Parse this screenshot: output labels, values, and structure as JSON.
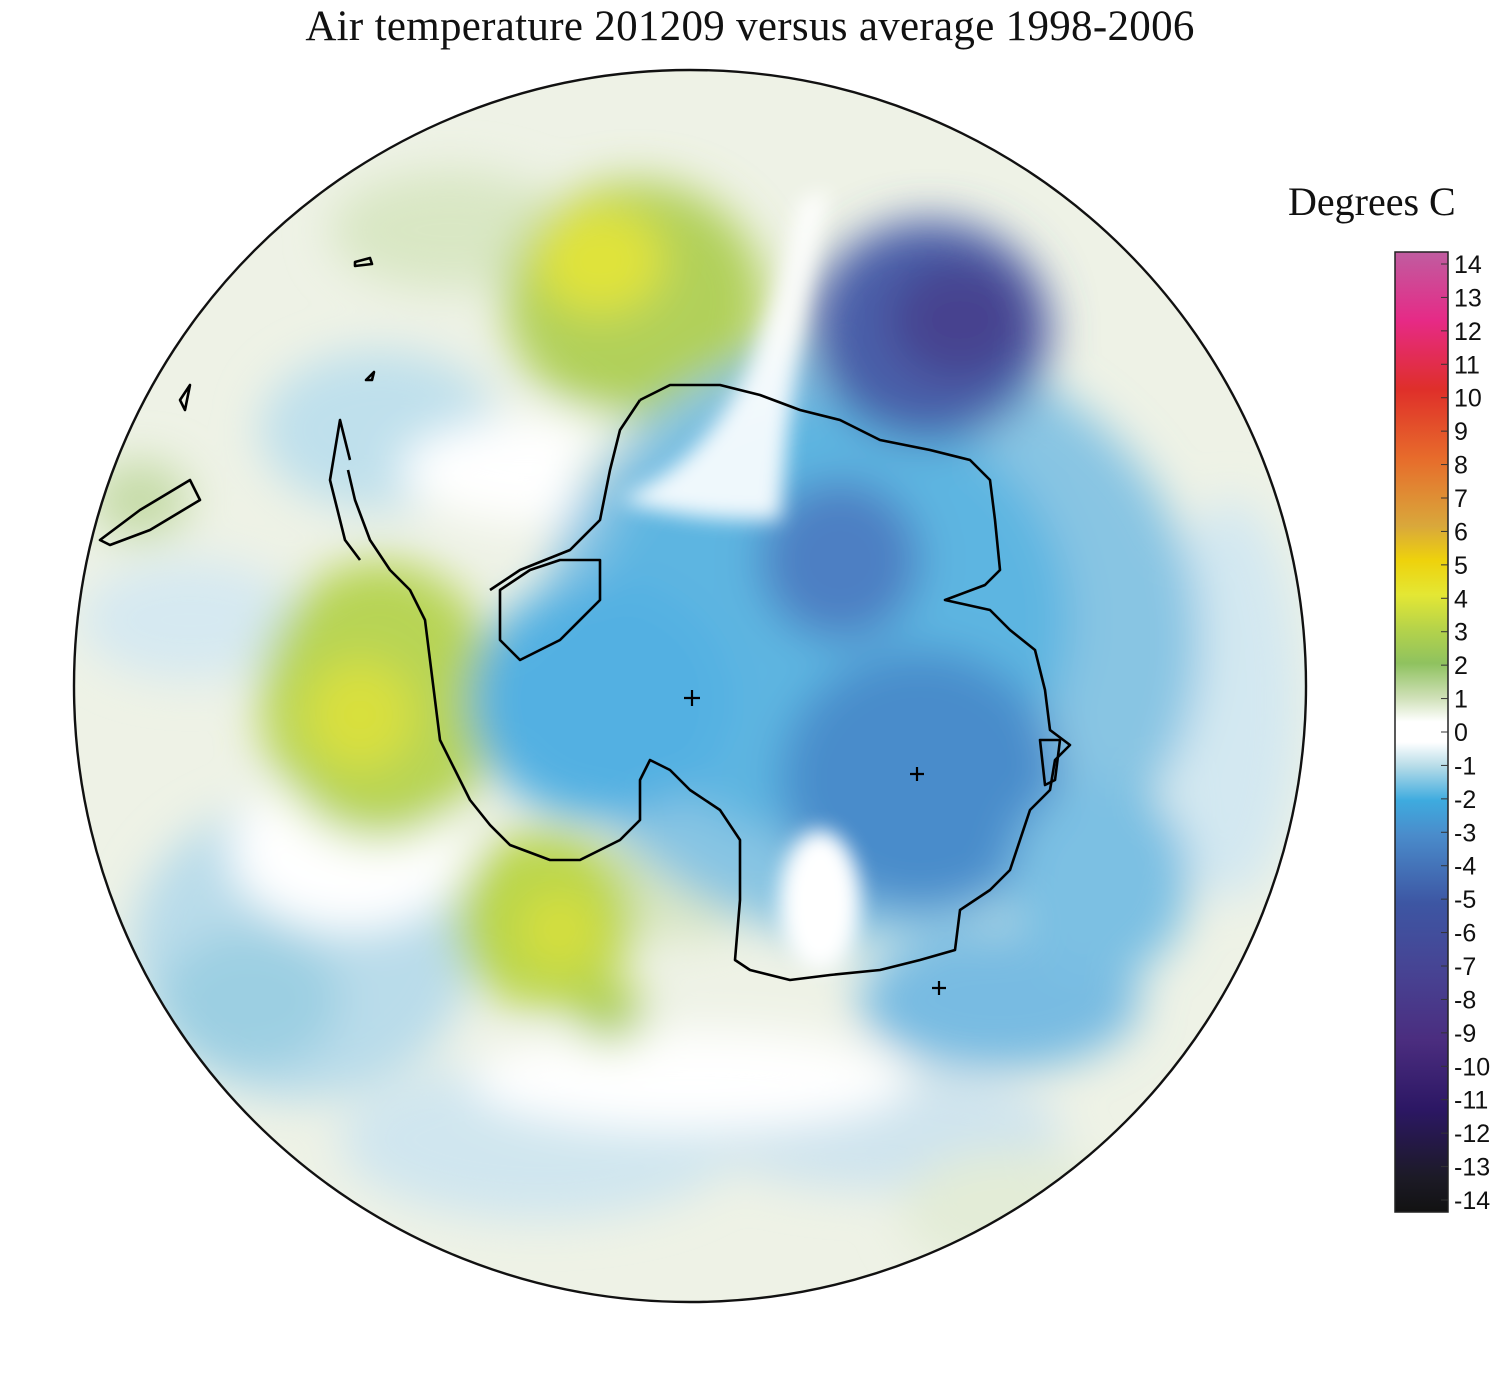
{
  "title": "Air temperature 201209 versus average 1998-2006",
  "legend": {
    "title": "Degrees C",
    "min": -14,
    "max": 14,
    "ticks": [
      14,
      13,
      12,
      11,
      10,
      9,
      8,
      7,
      6,
      5,
      4,
      3,
      2,
      1,
      0,
      -1,
      -2,
      -3,
      -4,
      -5,
      -6,
      -7,
      -8,
      -9,
      -10,
      -11,
      -12,
      -13,
      -14
    ],
    "tick_labels": [
      "14",
      "13",
      "12",
      "11",
      "10",
      "9",
      "8",
      "7",
      "6",
      "5",
      "4",
      "3",
      "2",
      "1",
      "0",
      "-1",
      "-2",
      "-3",
      "-4",
      "-5",
      "-6",
      "-7",
      "-8",
      "-9",
      "-10",
      "-11",
      "-12",
      "-13",
      "-14"
    ],
    "color_stops": [
      {
        "value": 14,
        "color": "#c05ca0"
      },
      {
        "value": 12,
        "color": "#e62a86"
      },
      {
        "value": 10,
        "color": "#df2f2a"
      },
      {
        "value": 8,
        "color": "#e76b2b"
      },
      {
        "value": 6,
        "color": "#d9a83b"
      },
      {
        "value": 5,
        "color": "#eed20c"
      },
      {
        "value": 4,
        "color": "#e4e734"
      },
      {
        "value": 3,
        "color": "#b5d34a"
      },
      {
        "value": 2,
        "color": "#8fc25f"
      },
      {
        "value": 1,
        "color": "#cfe0b7"
      },
      {
        "value": 0.3,
        "color": "#ffffff"
      },
      {
        "value": -0.3,
        "color": "#ffffff"
      },
      {
        "value": -1,
        "color": "#b6dce8"
      },
      {
        "value": -2,
        "color": "#3eabdf"
      },
      {
        "value": -3,
        "color": "#4a8ccb"
      },
      {
        "value": -5,
        "color": "#3d56a3"
      },
      {
        "value": -7,
        "color": "#474393"
      },
      {
        "value": -9,
        "color": "#4b2d7f"
      },
      {
        "value": -11,
        "color": "#2c1764"
      },
      {
        "value": -13,
        "color": "#1c1a26"
      },
      {
        "value": -14,
        "color": "#121212"
      }
    ]
  },
  "map": {
    "projection": "south polar stereographic",
    "region": "Antarctica and Southern Ocean",
    "anomalies": [
      {
        "region": "East Antarctic interior / Indian Ocean sector",
        "anomaly": -7
      },
      {
        "region": "Weddell Sea sector",
        "anomaly": 4
      },
      {
        "region": "Antarctic Peninsula / Bellingshausen Sea",
        "anomaly": 4
      },
      {
        "region": "Ross Sea sector",
        "anomaly": 4
      },
      {
        "region": "South Pole",
        "anomaly": -2
      }
    ],
    "colors": {
      "coastline": "#000000",
      "ocean_neutral": "#ffffff",
      "warm": "#b5d34a",
      "cold": "#3eabdf"
    }
  }
}
